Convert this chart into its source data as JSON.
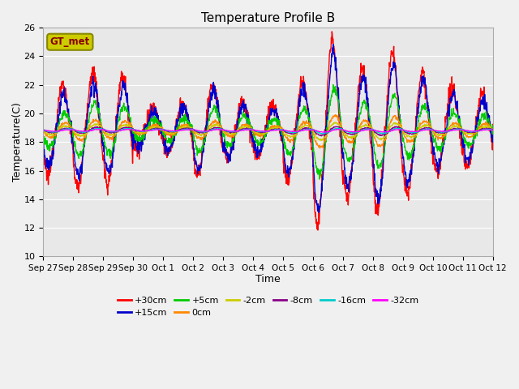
{
  "title": "Temperature Profile B",
  "xlabel": "Time",
  "ylabel": "Temperature(C)",
  "ylim": [
    10,
    26
  ],
  "yticks": [
    10,
    12,
    14,
    16,
    18,
    20,
    22,
    24,
    26
  ],
  "xtick_labels": [
    "Sep 27",
    "Sep 28",
    "Sep 29",
    "Sep 30",
    "Oct 1",
    "Oct 2",
    "Oct 3",
    "Oct 4",
    "Oct 5",
    "Oct 6",
    "Oct 7",
    "Oct 8",
    "Oct 9",
    "Oct 10",
    "Oct 11",
    "Oct 12"
  ],
  "series": [
    {
      "label": "+30cm",
      "color": "#ff0000"
    },
    {
      "label": "+15cm",
      "color": "#0000cc"
    },
    {
      "label": "+5cm",
      "color": "#00cc00"
    },
    {
      "label": "0cm",
      "color": "#ff8800"
    },
    {
      "label": "-2cm",
      "color": "#cccc00"
    },
    {
      "label": "-8cm",
      "color": "#880088"
    },
    {
      "label": "-16cm",
      "color": "#00cccc"
    },
    {
      "label": "-32cm",
      "color": "#ff00ff"
    }
  ],
  "bg_color": "#e8e8e8",
  "fig_bg_color": "#f0f0f0",
  "legend_box_text": "GT_met",
  "legend_box_facecolor": "#cccc00",
  "legend_box_edgecolor": "#888800",
  "legend_box_textcolor": "#880000",
  "base_temp": 18.8,
  "n_points": 1440,
  "n_days": 15
}
